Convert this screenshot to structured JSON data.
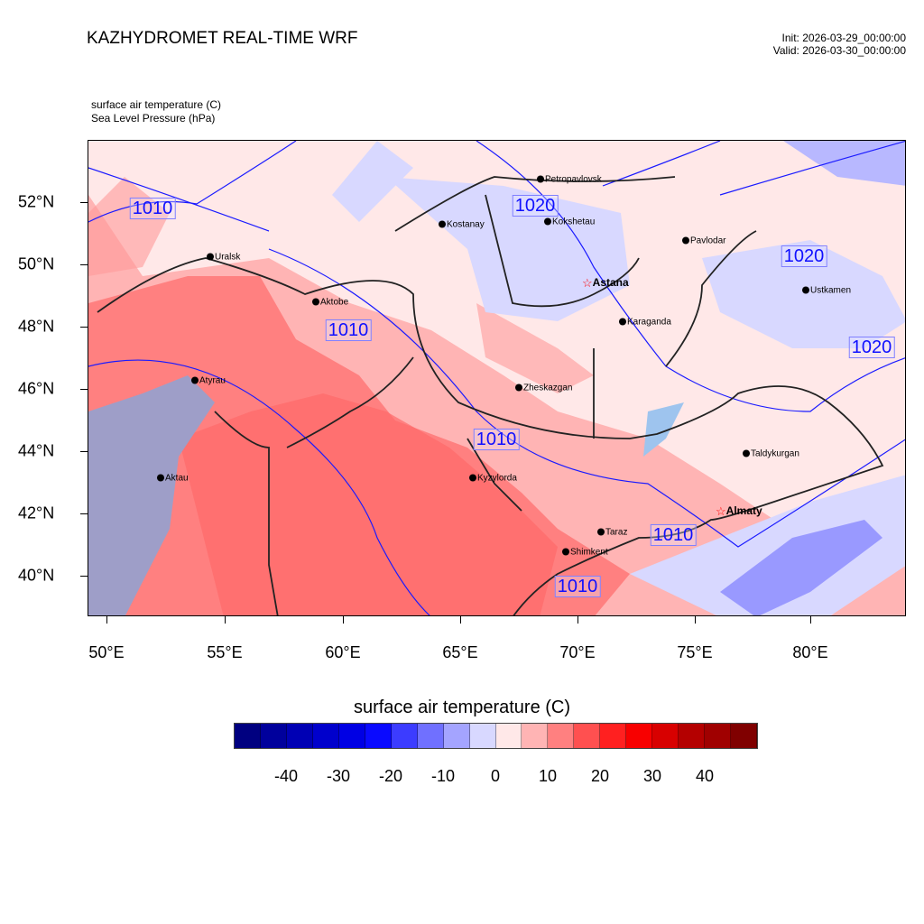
{
  "header": {
    "title": "KAZHYDROMET REAL-TIME WRF",
    "init": "Init: 2026-03-29_00:00:00",
    "valid": "Valid: 2026-03-30_00:00:00"
  },
  "fields": {
    "field1": "surface air temperature   (C)",
    "field2": "Sea Level Pressure   (hPa)"
  },
  "axes": {
    "lon_labels": [
      "50°E",
      "55°E",
      "60°E",
      "65°E",
      "70°E",
      "75°E",
      "80°E"
    ],
    "lat_labels": [
      "52°N",
      "50°N",
      "48°N",
      "46°N",
      "44°N",
      "42°N",
      "40°N"
    ]
  },
  "cities": [
    "Petropavlovsk",
    "Kostanay",
    "Kokshetau",
    "Pavlodar",
    "Uralsk",
    "Aktobe",
    "Astana",
    "Ustkamen",
    "Karaganda",
    "Atyrau",
    "Zheskazgan",
    "Taldykurgan",
    "Aktau",
    "Kyzylorda",
    "Almaty",
    "Taraz",
    "Shimkent"
  ],
  "isobar_labels": [
    "1010",
    "1020",
    "1020",
    "1010",
    "1020",
    "1010",
    "1010",
    "1010"
  ],
  "colorbar": {
    "title": "surface air temperature  (C)",
    "labels": [
      "-40",
      "-30",
      "-20",
      "-10",
      "0",
      "10",
      "20",
      "30",
      "40"
    ],
    "colors": [
      "#000080",
      "#00009c",
      "#0000b4",
      "#0000cc",
      "#0000e4",
      "#0a0aff",
      "#3c3cff",
      "#7070ff",
      "#a4a4ff",
      "#d8d8ff",
      "#ffe8e8",
      "#ffb4b4",
      "#ff8080",
      "#ff5050",
      "#ff2020",
      "#f80000",
      "#d80000",
      "#b40000",
      "#a00000",
      "#800000"
    ]
  }
}
